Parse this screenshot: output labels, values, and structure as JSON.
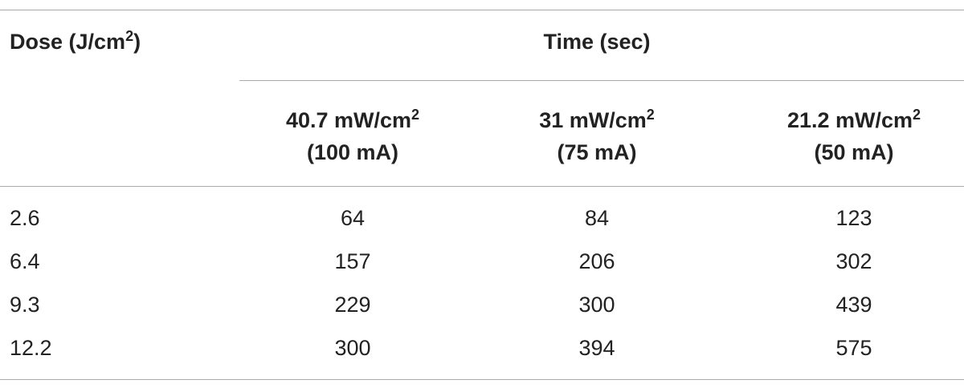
{
  "table": {
    "header": {
      "row_label": {
        "text": "Dose (J/cm",
        "sup": "2",
        "tail": ")"
      },
      "group": "Time (sec)",
      "columns": [
        {
          "text": "40.7 mW/cm",
          "sup": "2",
          "sub": "(100 mA)"
        },
        {
          "text": "31 mW/cm",
          "sup": "2",
          "sub": "(75 mA)"
        },
        {
          "text": "21.2 mW/cm",
          "sup": "2",
          "sub": "(50 mA)"
        }
      ]
    },
    "rows": [
      {
        "label": 2.6,
        "values": [
          64,
          84,
          123
        ]
      },
      {
        "label": 6.4,
        "values": [
          157,
          206,
          302
        ]
      },
      {
        "label": 9.3,
        "values": [
          229,
          300,
          439
        ]
      },
      {
        "label": 12.2,
        "values": [
          300,
          394,
          575
        ]
      }
    ]
  }
}
